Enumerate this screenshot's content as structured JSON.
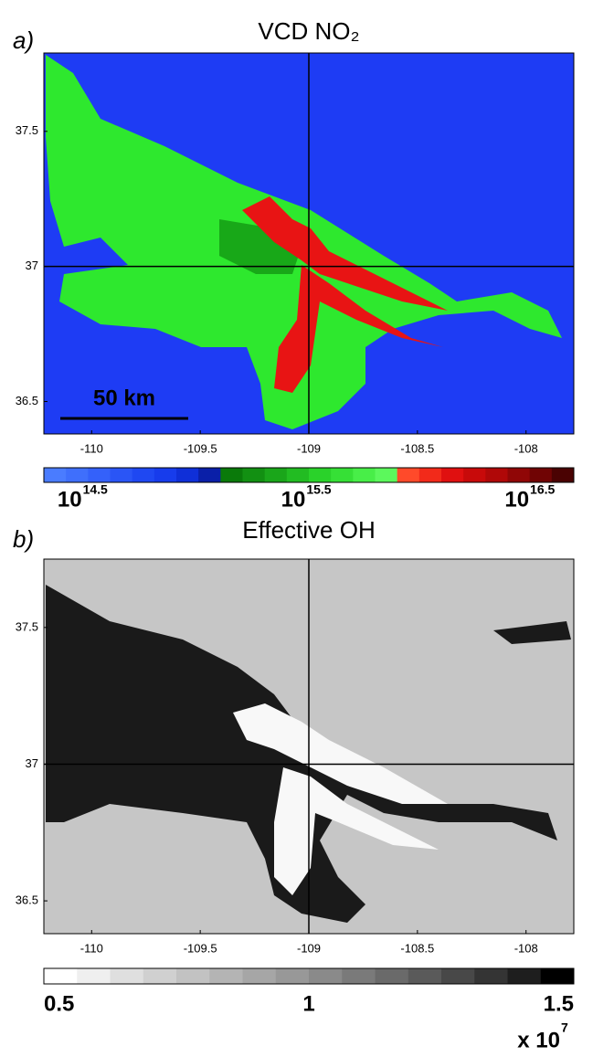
{
  "chart_data": [
    {
      "type": "heatmap",
      "panel_label": "a)",
      "title": "VCD NO₂",
      "xlim": [
        -110.22,
        -107.78
      ],
      "ylim": [
        36.38,
        37.79
      ],
      "xticks": [
        -110,
        -109.5,
        -109,
        -108.5,
        -108
      ],
      "yticks": [
        36.5,
        37,
        37.5
      ],
      "crosshair": {
        "x": -109,
        "y": 37
      },
      "scale_bar": "50 km",
      "colorbar": {
        "log": true,
        "base": "10",
        "lim": [
          14.33,
          16.7
        ],
        "ticks": [
          14.5,
          15.5,
          16.5
        ],
        "colors": [
          "#4a7cff",
          "#3f6ffc",
          "#3461fa",
          "#2a55f6",
          "#1f48f2",
          "#173cec",
          "#0f2fd8",
          "#0a1fa8",
          "#0a7a0a",
          "#129012",
          "#1aa61a",
          "#22bc22",
          "#2ad22a",
          "#36e036",
          "#48ee48",
          "#5cf85c",
          "#ff4a2a",
          "#f22a1a",
          "#e01010",
          "#c80a0a",
          "#b00808",
          "#900606",
          "#700404",
          "#4a0202"
        ]
      }
    },
    {
      "type": "heatmap",
      "panel_label": "b)",
      "title": "Effective OH",
      "xlim": [
        -110.22,
        -107.78
      ],
      "ylim": [
        36.38,
        37.75
      ],
      "xticks": [
        -110,
        -109.5,
        -109,
        -108.5,
        -108
      ],
      "yticks": [
        36.5,
        37,
        37.5
      ],
      "crosshair": {
        "x": -109,
        "y": 37
      },
      "colorbar": {
        "log": false,
        "lim": [
          0.5,
          1.5
        ],
        "ticks": [
          0.5,
          1,
          1.5
        ],
        "multiplier_base": "x 10",
        "multiplier_exp": 7,
        "colors": [
          "#ffffff",
          "#efefef",
          "#dfdfdf",
          "#d0d0d0",
          "#c2c2c2",
          "#b4b4b4",
          "#a6a6a6",
          "#989898",
          "#8a8a8a",
          "#7a7a7a",
          "#6a6a6a",
          "#5a5a5a",
          "#484848",
          "#343434",
          "#1e1e1e",
          "#000000"
        ]
      }
    }
  ]
}
